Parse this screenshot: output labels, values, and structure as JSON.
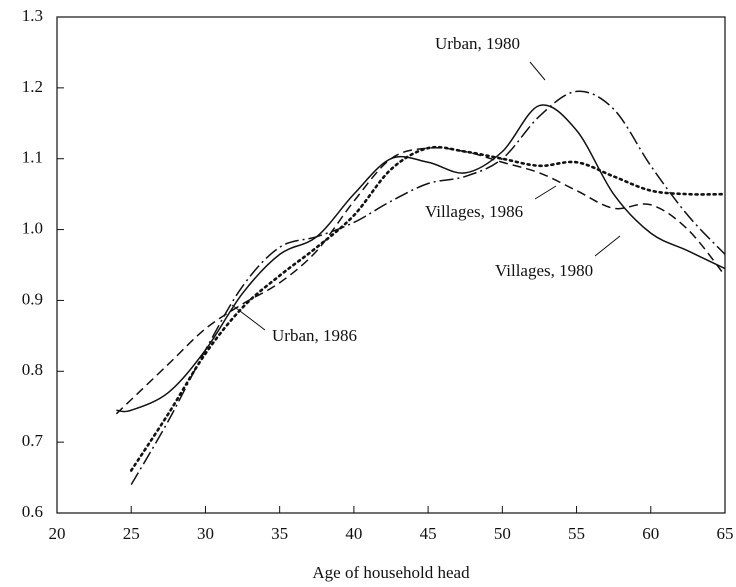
{
  "chart_data": {
    "type": "line",
    "x_label": "Age of household head",
    "x": [
      24,
      25,
      27.5,
      30,
      32.5,
      35,
      37.5,
      40,
      42.5,
      45,
      47.5,
      50,
      52.5,
      55,
      57.5,
      60,
      62.5,
      65
    ],
    "series": [
      {
        "name": "Urban, 1980",
        "color": "#111111",
        "dash": "14 4 2 4",
        "values": [
          null,
          0.64,
          0.73,
          0.83,
          0.92,
          0.975,
          0.99,
          1.01,
          1.04,
          1.065,
          1.075,
          1.1,
          1.16,
          1.195,
          1.17,
          1.09,
          1.02,
          0.965
        ]
      },
      {
        "name": "Urban, 1986",
        "color": "#111111",
        "dash": "2 4",
        "values": [
          null,
          0.66,
          0.74,
          0.825,
          0.89,
          0.935,
          0.975,
          1.02,
          1.085,
          1.115,
          1.11,
          1.1,
          1.09,
          1.095,
          1.075,
          1.055,
          1.05,
          1.05
        ]
      },
      {
        "name": "Villages, 1980",
        "color": "#111111",
        "dash": "none",
        "values": [
          0.745,
          0.745,
          0.77,
          0.83,
          0.91,
          0.965,
          0.99,
          1.05,
          1.1,
          1.095,
          1.08,
          1.11,
          1.175,
          1.14,
          1.05,
          0.995,
          0.97,
          0.945
        ]
      },
      {
        "name": "Villages, 1986",
        "color": "#111111",
        "dash": "9 5",
        "values": [
          0.74,
          0.76,
          0.81,
          0.86,
          0.895,
          0.925,
          0.97,
          1.04,
          1.1,
          1.115,
          1.11,
          1.095,
          1.08,
          1.055,
          1.03,
          1.035,
          1.0,
          0.935
        ]
      }
    ],
    "xlim": [
      20,
      65
    ],
    "xticks": [
      20,
      25,
      30,
      35,
      40,
      45,
      50,
      55,
      60,
      65
    ],
    "ylim": [
      0.6,
      1.3
    ],
    "yticks": [
      0.6,
      0.7,
      0.8,
      0.9,
      {
        "value": 1,
        "label": "1.0"
      },
      1.1,
      1.2,
      1.3
    ]
  }
}
